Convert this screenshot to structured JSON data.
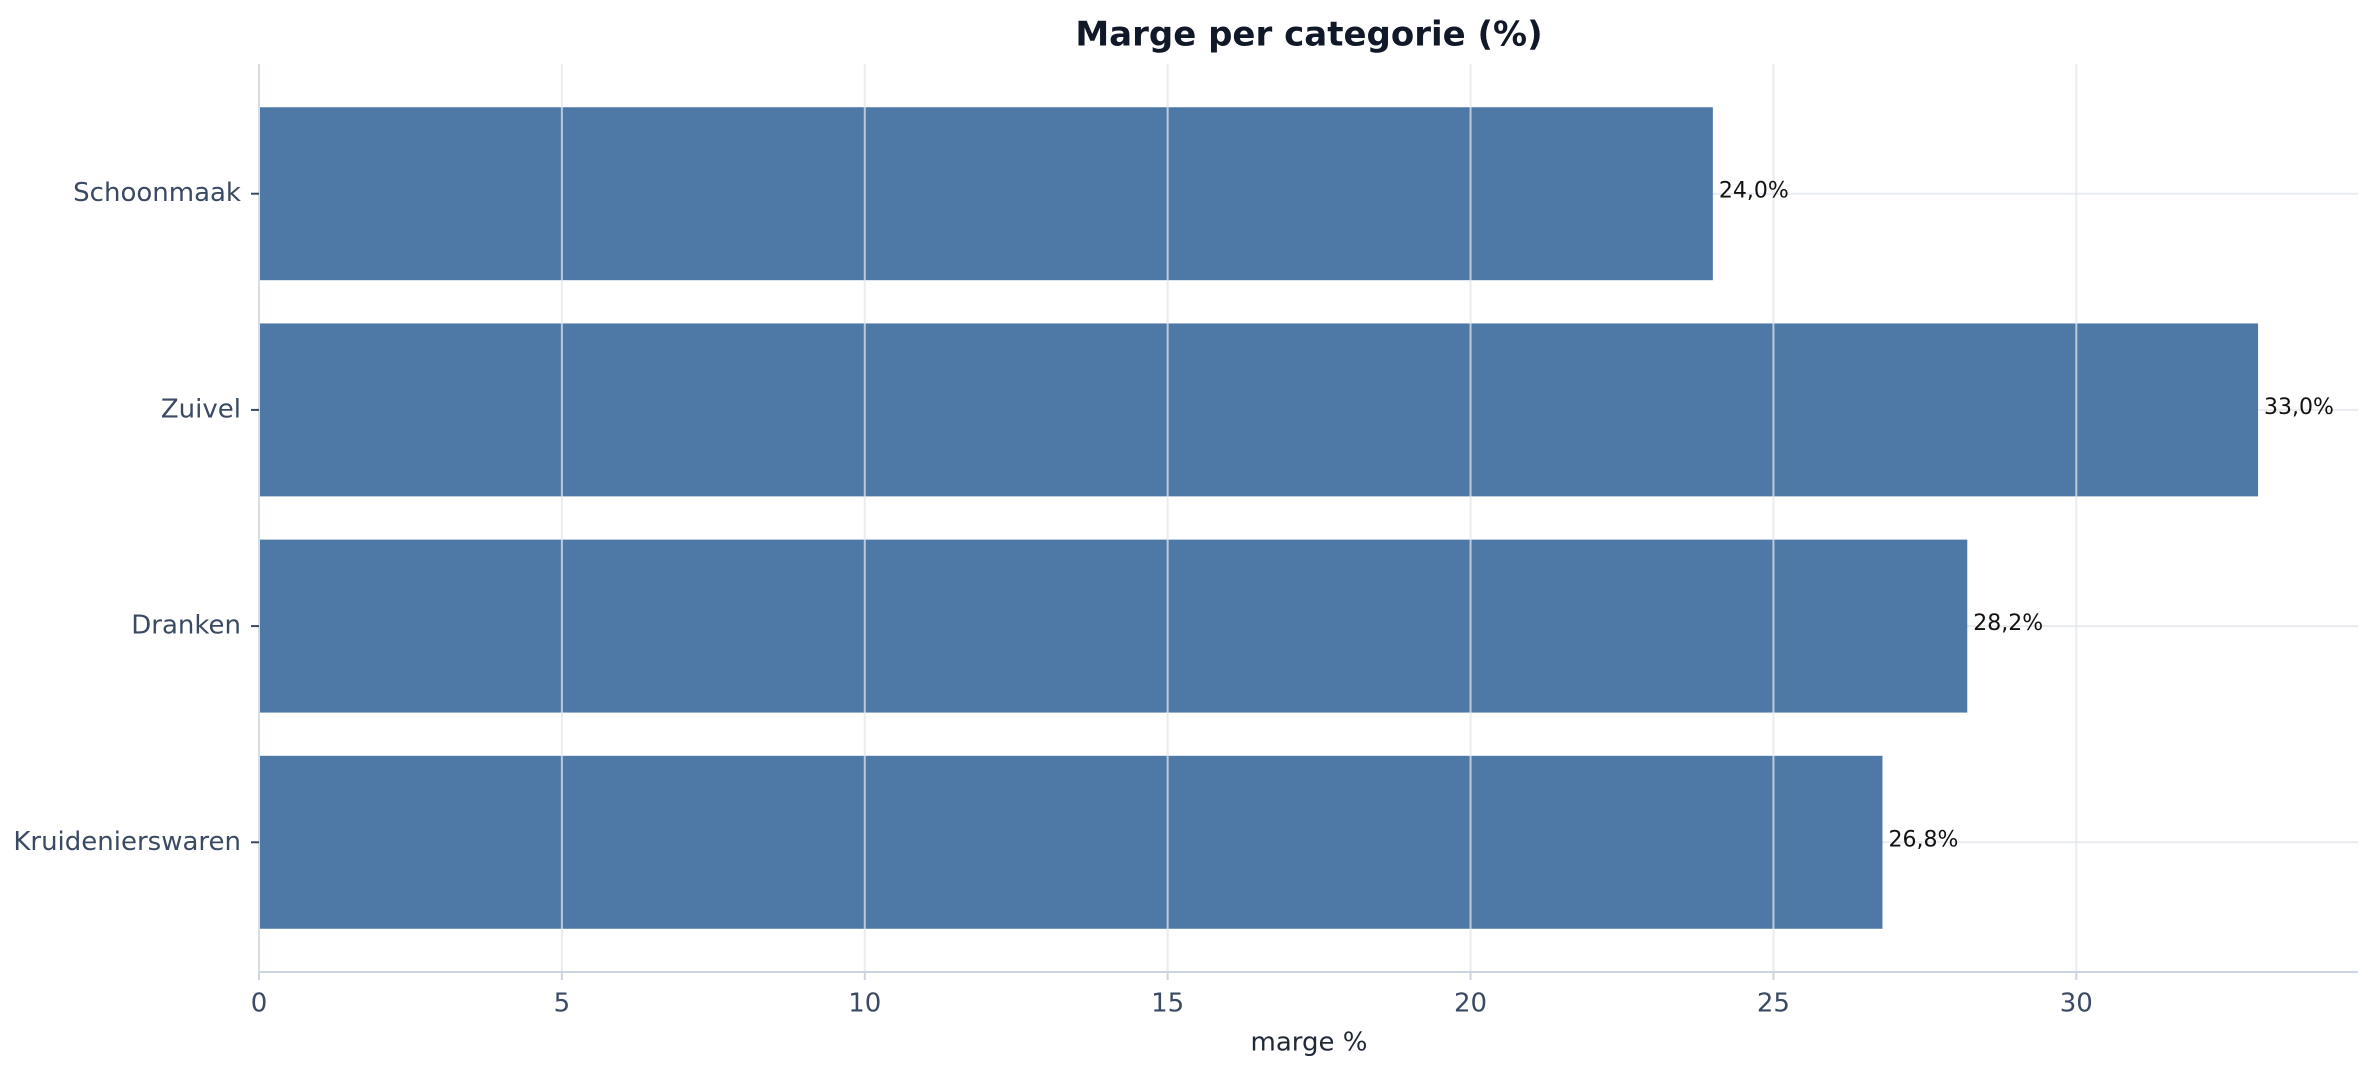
{
  "chart_data": {
    "type": "barh",
    "title": "Marge per categorie (%)",
    "xlabel": "marge %",
    "categories": [
      "Schoonmaak",
      "Zuivel",
      "Dranken",
      "Kruidenierswaren"
    ],
    "values": [
      24.0,
      33.0,
      28.2,
      26.8
    ],
    "value_labels": [
      "24,0%",
      "33,0%",
      "28,2%",
      "26,8%"
    ],
    "color": "#4e79a7",
    "xlim": [
      0,
      34.65
    ],
    "xticks": [
      0,
      5,
      10,
      15,
      20,
      25,
      30
    ],
    "grid": true
  }
}
